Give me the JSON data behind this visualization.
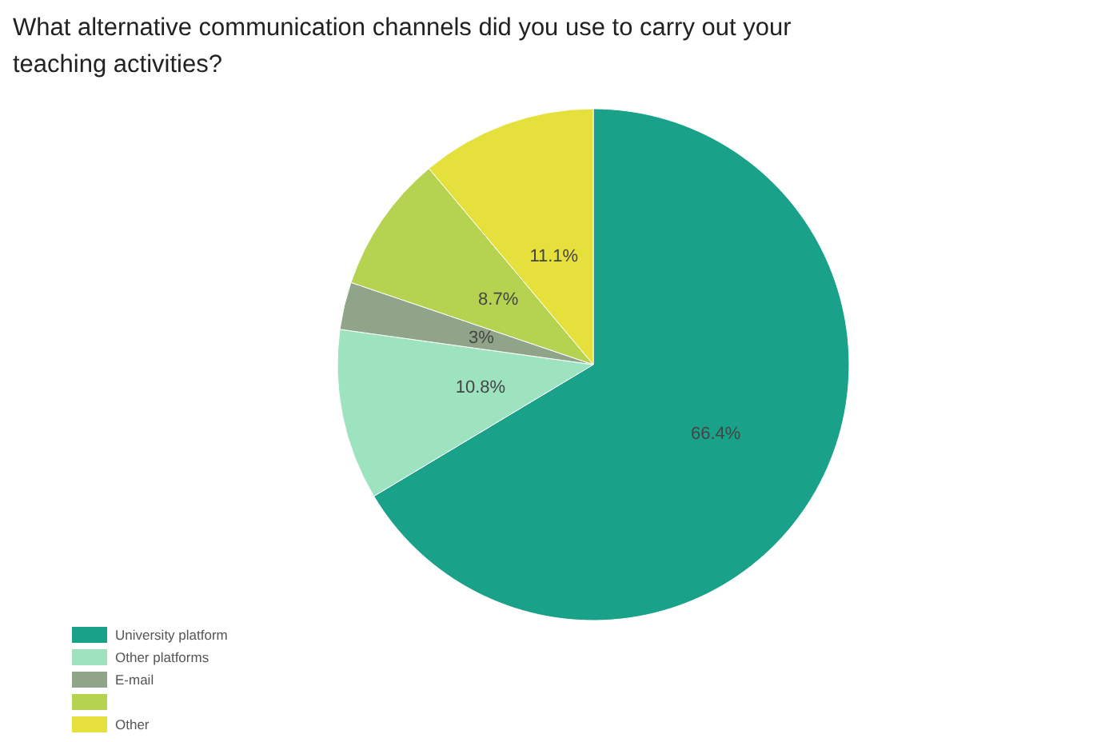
{
  "chart_data": {
    "type": "pie",
    "title": "What alternative communication channels did you use to carry out your teaching activities?",
    "categories": [
      "University platform",
      "Other platforms",
      "E-mail",
      null,
      "Other"
    ],
    "values": [
      66.4,
      10.8,
      3,
      8.7,
      11.1
    ],
    "value_labels": [
      "66.4%",
      "10.8%",
      "3%",
      "8.7%",
      "11.1%"
    ],
    "colors": [
      "#1aa189",
      "#9de3c0",
      "#8fa489",
      "#b5d350",
      "#e6e03c"
    ],
    "legend": "bottom left"
  }
}
